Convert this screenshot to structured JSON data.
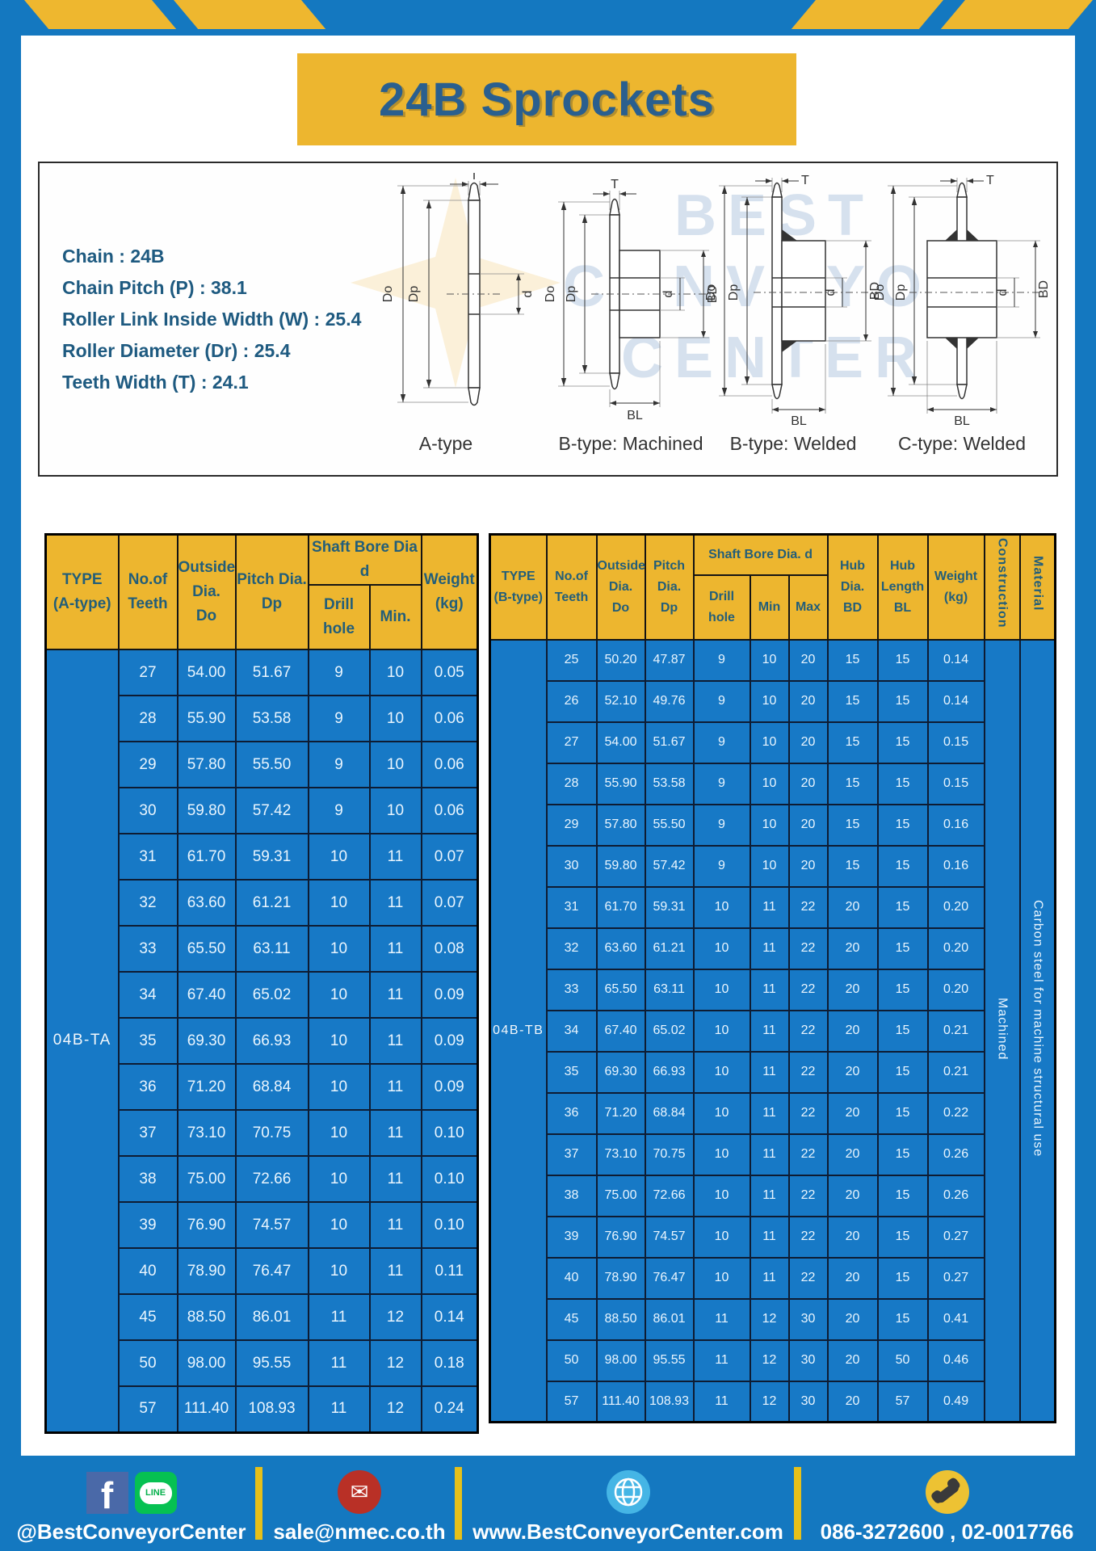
{
  "page_title": "24B Sprockets",
  "specs": {
    "lines": [
      "Chain  : 24B",
      "Chain Pitch (P)  :  38.1",
      "Roller Link Inside Width (W)  :  25.4",
      "Roller Diameter (Dr)  : 25.4",
      "Teeth Width (T)  :  24.1"
    ]
  },
  "watermark": {
    "line1": "BEST",
    "line2": "CONVEYOR",
    "line3": "CENTER"
  },
  "diagrams": {
    "labels": [
      "A-type",
      "B-type: Machined",
      "B-type: Welded",
      "C-type: Welded"
    ],
    "dims": {
      "t": "T",
      "do": "Do",
      "dp": "Dp",
      "d": "d",
      "bd": "BD",
      "bl": "BL"
    }
  },
  "table_a": {
    "type_label": "04B-TA",
    "headers": {
      "type": "TYPE\n(A-type)",
      "teeth": "No.of\nTeeth",
      "outside": "Outside\nDia.\nDo",
      "pitch": "Pitch Dia.\nDp",
      "shaft": "Shaft Bore Dia d",
      "drill": "Drill hole",
      "min": "Min.",
      "weight": "Weight\n(kg)"
    },
    "rows": [
      [
        "27",
        "54.00",
        "51.67",
        "9",
        "10",
        "0.05"
      ],
      [
        "28",
        "55.90",
        "53.58",
        "9",
        "10",
        "0.06"
      ],
      [
        "29",
        "57.80",
        "55.50",
        "9",
        "10",
        "0.06"
      ],
      [
        "30",
        "59.80",
        "57.42",
        "9",
        "10",
        "0.06"
      ],
      [
        "31",
        "61.70",
        "59.31",
        "10",
        "11",
        "0.07"
      ],
      [
        "32",
        "63.60",
        "61.21",
        "10",
        "11",
        "0.07"
      ],
      [
        "33",
        "65.50",
        "63.11",
        "10",
        "11",
        "0.08"
      ],
      [
        "34",
        "67.40",
        "65.02",
        "10",
        "11",
        "0.09"
      ],
      [
        "35",
        "69.30",
        "66.93",
        "10",
        "11",
        "0.09"
      ],
      [
        "36",
        "71.20",
        "68.84",
        "10",
        "11",
        "0.09"
      ],
      [
        "37",
        "73.10",
        "70.75",
        "10",
        "11",
        "0.10"
      ],
      [
        "38",
        "75.00",
        "72.66",
        "10",
        "11",
        "0.10"
      ],
      [
        "39",
        "76.90",
        "74.57",
        "10",
        "11",
        "0.10"
      ],
      [
        "40",
        "78.90",
        "76.47",
        "10",
        "11",
        "0.11"
      ],
      [
        "45",
        "88.50",
        "86.01",
        "11",
        "12",
        "0.14"
      ],
      [
        "50",
        "98.00",
        "95.55",
        "11",
        "12",
        "0.18"
      ],
      [
        "57",
        "111.40",
        "108.93",
        "11",
        "12",
        "0.24"
      ]
    ]
  },
  "table_b": {
    "type_label": "04B-TB",
    "headers": {
      "type": "TYPE\n(B-type)",
      "teeth": "No.of\nTeeth",
      "outside": "Outside\nDia.\nDo",
      "pitch": "Pitch\nDia.\nDp",
      "shaft": "Shaft Bore Dia.  d",
      "drill": "Drill hole",
      "min": "Min",
      "max": "Max",
      "hub_dia": "Hub\nDia.\nBD",
      "hub_length": "Hub\nLength\nBL",
      "weight": "Weight\n(kg)",
      "construction": "Construction",
      "material": "Material"
    },
    "construction_value": "Machined",
    "material_value": "Carbon steel for machine structural use",
    "rows": [
      [
        "25",
        "50.20",
        "47.87",
        "9",
        "10",
        "20",
        "15",
        "15",
        "0.14"
      ],
      [
        "26",
        "52.10",
        "49.76",
        "9",
        "10",
        "20",
        "15",
        "15",
        "0.14"
      ],
      [
        "27",
        "54.00",
        "51.67",
        "9",
        "10",
        "20",
        "15",
        "15",
        "0.15"
      ],
      [
        "28",
        "55.90",
        "53.58",
        "9",
        "10",
        "20",
        "15",
        "15",
        "0.15"
      ],
      [
        "29",
        "57.80",
        "55.50",
        "9",
        "10",
        "20",
        "15",
        "15",
        "0.16"
      ],
      [
        "30",
        "59.80",
        "57.42",
        "9",
        "10",
        "20",
        "15",
        "15",
        "0.16"
      ],
      [
        "31",
        "61.70",
        "59.31",
        "10",
        "11",
        "22",
        "20",
        "15",
        "0.20"
      ],
      [
        "32",
        "63.60",
        "61.21",
        "10",
        "11",
        "22",
        "20",
        "15",
        "0.20"
      ],
      [
        "33",
        "65.50",
        "63.11",
        "10",
        "11",
        "22",
        "20",
        "15",
        "0.20"
      ],
      [
        "34",
        "67.40",
        "65.02",
        "10",
        "11",
        "22",
        "20",
        "15",
        "0.21"
      ],
      [
        "35",
        "69.30",
        "66.93",
        "10",
        "11",
        "22",
        "20",
        "15",
        "0.21"
      ],
      [
        "36",
        "71.20",
        "68.84",
        "10",
        "11",
        "22",
        "20",
        "15",
        "0.22"
      ],
      [
        "37",
        "73.10",
        "70.75",
        "10",
        "11",
        "22",
        "20",
        "15",
        "0.26"
      ],
      [
        "38",
        "75.00",
        "72.66",
        "10",
        "11",
        "22",
        "20",
        "15",
        "0.26"
      ],
      [
        "39",
        "76.90",
        "74.57",
        "10",
        "11",
        "22",
        "20",
        "15",
        "0.27"
      ],
      [
        "40",
        "78.90",
        "76.47",
        "10",
        "11",
        "22",
        "20",
        "15",
        "0.27"
      ],
      [
        "45",
        "88.50",
        "86.01",
        "11",
        "12",
        "30",
        "20",
        "15",
        "0.41"
      ],
      [
        "50",
        "98.00",
        "95.55",
        "11",
        "12",
        "30",
        "20",
        "50",
        "0.46"
      ],
      [
        "57",
        "111.40",
        "108.93",
        "11",
        "12",
        "30",
        "20",
        "57",
        "0.49"
      ]
    ]
  },
  "footer": {
    "social_text": "@BestConveyorCenter",
    "email_text": "sale@nmec.co.th",
    "website_text": "www.BestConveyorCenter.com",
    "phone_text": "086-3272600 , 02-0017766",
    "facebook_glyph": "f",
    "line_glyph": "LINE",
    "mail_glyph": "✉"
  },
  "colors": {
    "frame_blue": "#1478c0",
    "gold": "#edb62f",
    "cell_blue": "#1779c6",
    "header_text": "#235e79",
    "title_text": "#2a5f8e"
  }
}
